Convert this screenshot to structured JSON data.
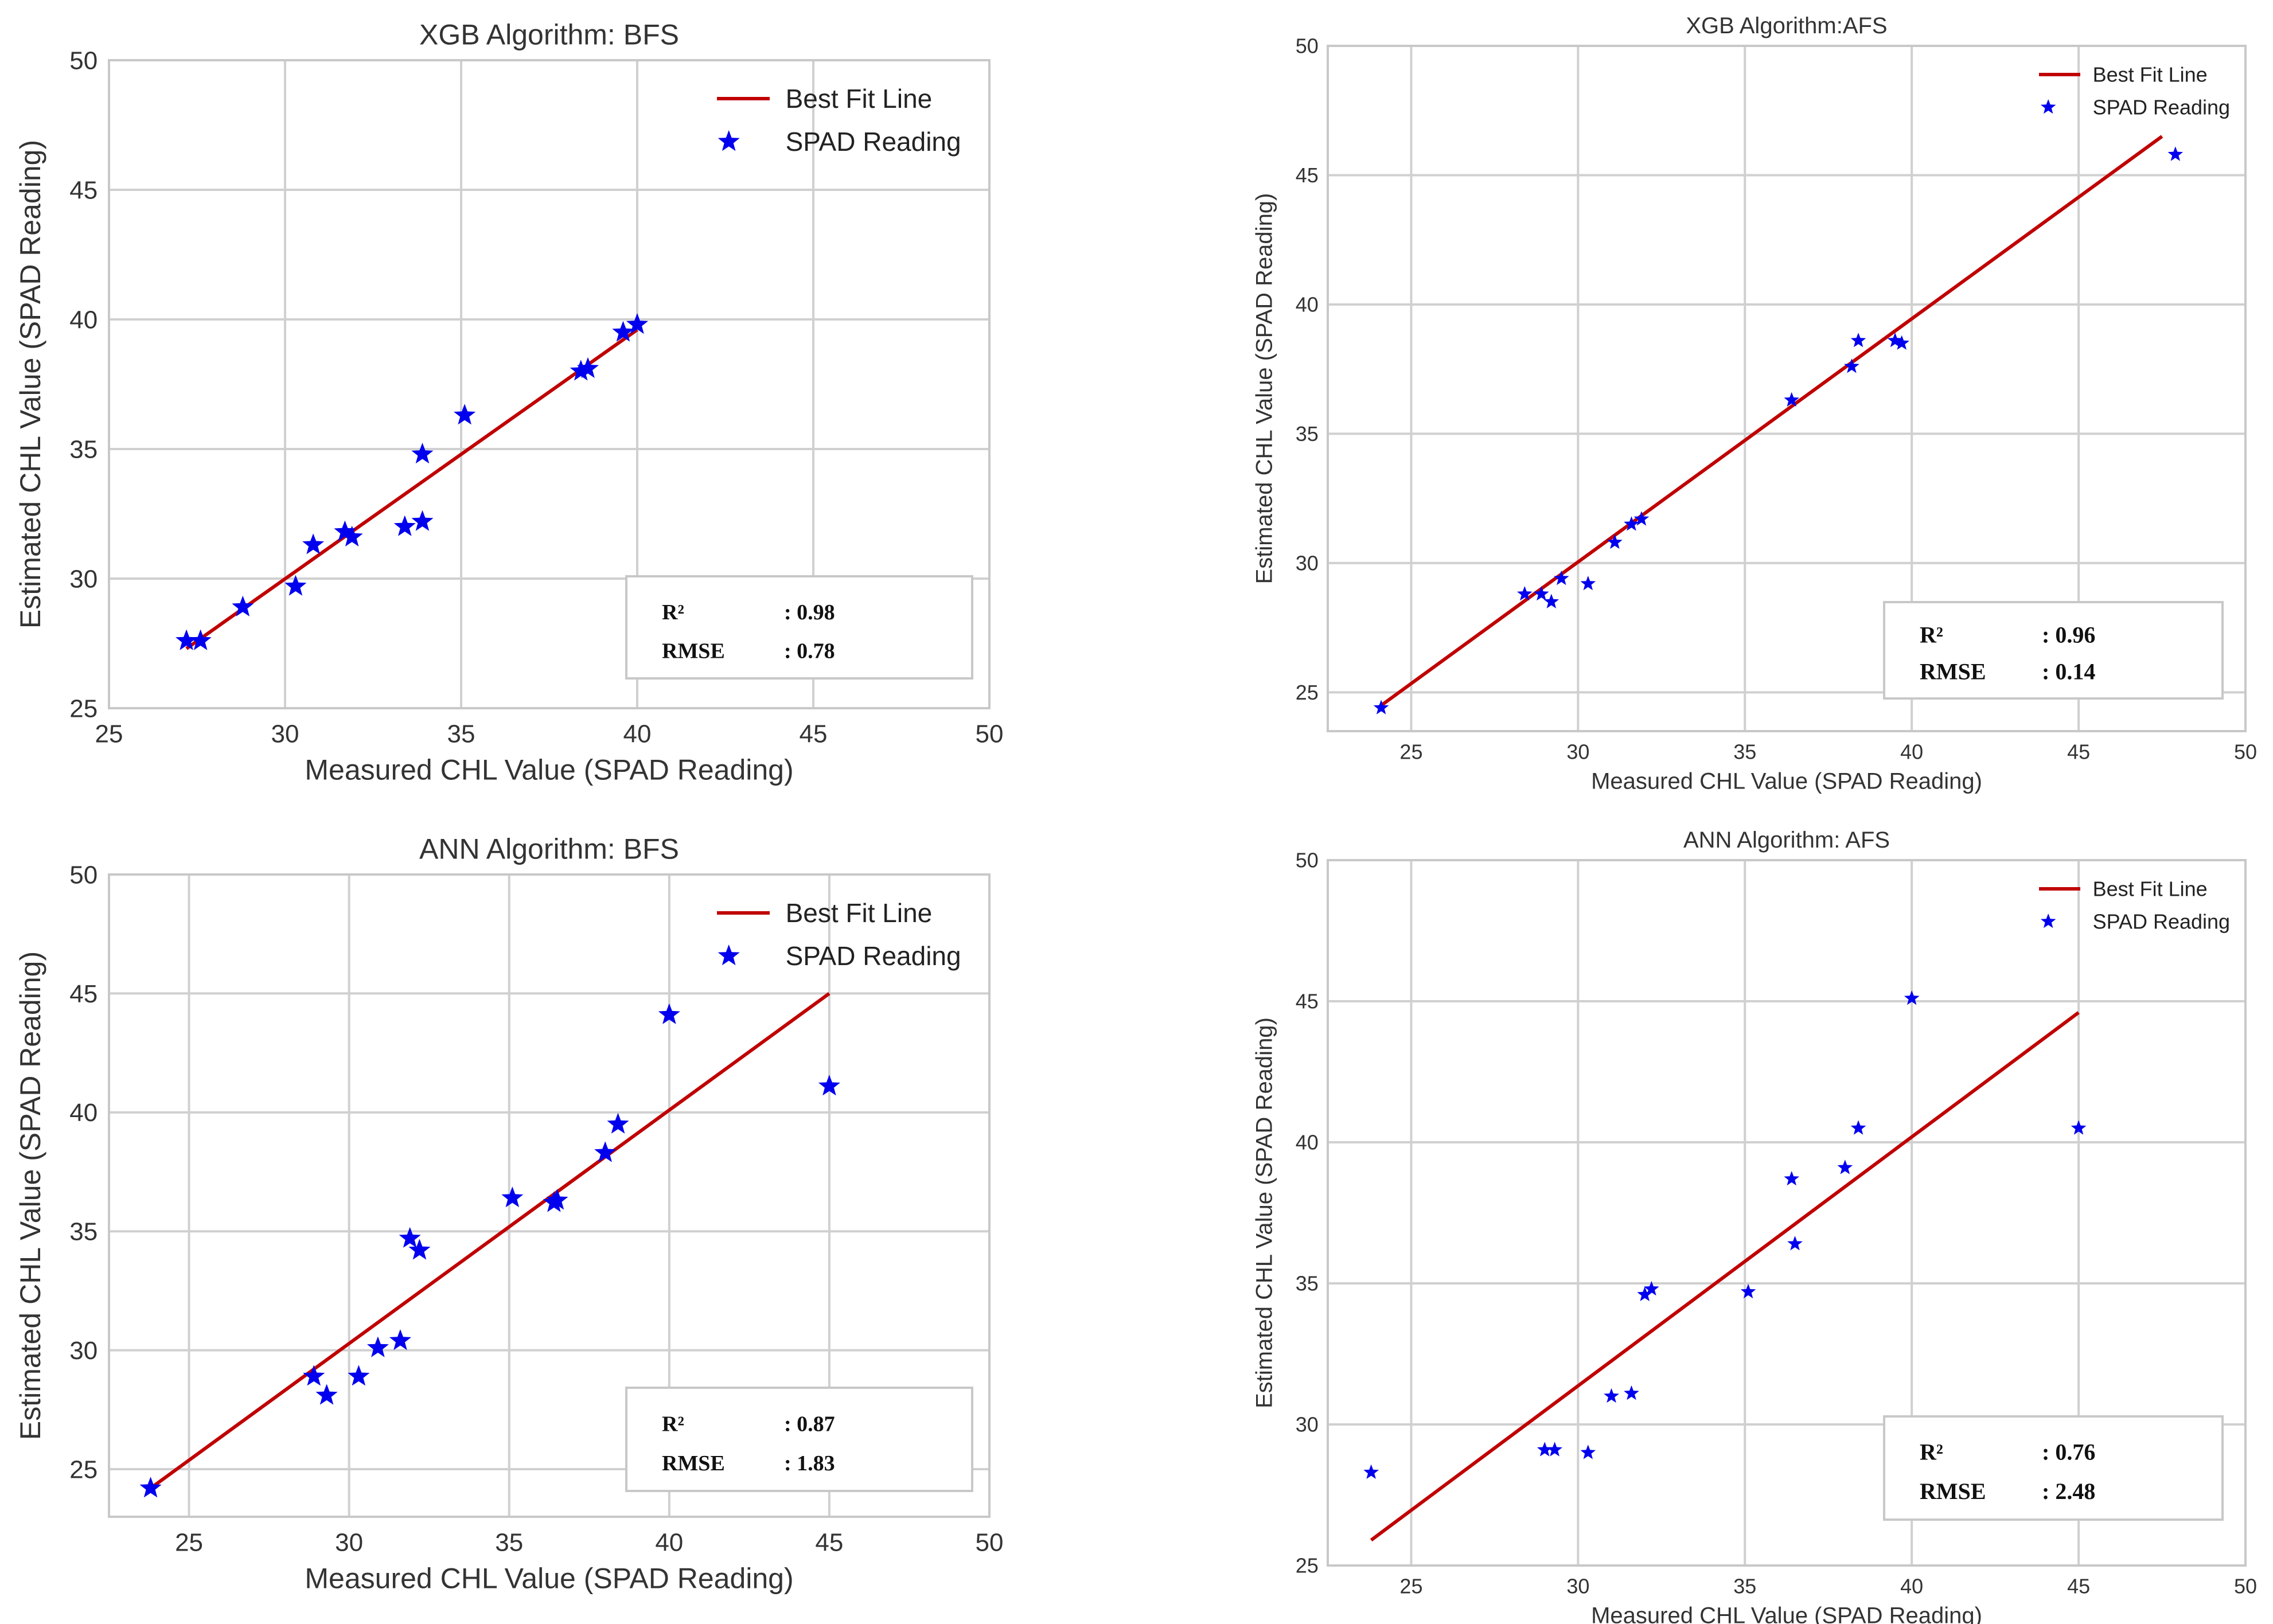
{
  "colors": {
    "line": "#c00000",
    "marker": "#0000ee",
    "grid": "#d0d0d0",
    "frame": "#c8c8c8",
    "text": "#333333"
  },
  "chart_data": [
    {
      "type": "scatter",
      "title": "XGB Algorithm: BFS",
      "xlabel": "Measured CHL Value (SPAD Reading)",
      "ylabel": "Estimated CHL Value (SPAD Reading)",
      "xlim": [
        25,
        50
      ],
      "ylim": [
        25,
        50
      ],
      "xticks": [
        25,
        30,
        35,
        40,
        45,
        50
      ],
      "yticks": [
        25,
        30,
        35,
        40,
        45,
        50
      ],
      "legend": [
        "Best Fit Line",
        "SPAD Reading"
      ],
      "fit_line": {
        "x": [
          27.2,
          40.0
        ],
        "y": [
          27.3,
          39.6
        ]
      },
      "points": {
        "x": [
          27.2,
          27.6,
          28.8,
          30.3,
          30.8,
          31.7,
          31.9,
          33.4,
          33.9,
          33.9,
          35.1,
          38.4,
          38.6,
          39.6,
          40.0
        ],
        "y": [
          27.6,
          27.6,
          28.9,
          29.7,
          31.3,
          31.8,
          31.6,
          32.0,
          32.2,
          34.8,
          36.3,
          38.0,
          38.1,
          39.5,
          39.8
        ]
      },
      "stats": {
        "r2_label": "R²",
        "r2_value": ": 0.98",
        "rmse_label": "RMSE",
        "rmse_value": ": 0.78"
      }
    },
    {
      "type": "scatter",
      "title": "XGB Algorithm:AFS",
      "xlabel": "Measured CHL Value (SPAD Reading)",
      "ylabel": "Estimated CHL Value (SPAD Reading)",
      "xlim": [
        22.5,
        50
      ],
      "ylim": [
        23.5,
        50
      ],
      "xticks": [
        25,
        30,
        35,
        40,
        45,
        50
      ],
      "yticks": [
        25,
        30,
        35,
        40,
        45,
        50
      ],
      "legend": [
        "Best Fit Line",
        "SPAD Reading"
      ],
      "fit_line": {
        "x": [
          24.0,
          47.5
        ],
        "y": [
          24.4,
          46.5
        ]
      },
      "points": {
        "x": [
          24.1,
          28.4,
          28.9,
          29.2,
          29.5,
          30.3,
          31.1,
          31.6,
          31.9,
          36.4,
          38.2,
          38.4,
          39.5,
          39.7,
          47.9
        ],
        "y": [
          24.4,
          28.8,
          28.8,
          28.5,
          29.4,
          29.2,
          30.8,
          31.5,
          31.7,
          36.3,
          37.6,
          38.6,
          38.6,
          38.5,
          45.8
        ]
      },
      "stats": {
        "r2_label": "R²",
        "r2_value": ": 0.96",
        "rmse_label": "RMSE",
        "rmse_value": ": 0.14"
      }
    },
    {
      "type": "scatter",
      "title": "ANN Algorithm: BFS",
      "xlabel": "Measured CHL Value (SPAD Reading)",
      "ylabel": "Estimated CHL Value (SPAD Reading)",
      "xlim": [
        22.5,
        50
      ],
      "ylim": [
        23,
        50
      ],
      "xticks": [
        25,
        30,
        35,
        40,
        45,
        50
      ],
      "yticks": [
        25,
        30,
        35,
        40,
        45,
        50
      ],
      "legend": [
        "Best Fit Line",
        "SPAD Reading"
      ],
      "fit_line": {
        "x": [
          23.8,
          45.0
        ],
        "y": [
          24.2,
          45.0
        ]
      },
      "points": {
        "x": [
          23.8,
          28.9,
          29.3,
          30.3,
          30.9,
          31.6,
          31.9,
          32.2,
          35.1,
          36.4,
          36.5,
          38.0,
          38.4,
          40.0,
          45.0
        ],
        "y": [
          24.2,
          28.9,
          28.1,
          28.9,
          30.1,
          30.4,
          34.7,
          34.2,
          36.4,
          36.2,
          36.3,
          38.3,
          39.5,
          44.1,
          41.1
        ]
      },
      "stats": {
        "r2_label": "R²",
        "r2_value": ": 0.87",
        "rmse_label": "RMSE",
        "rmse_value": ": 1.83"
      }
    },
    {
      "type": "scatter",
      "title": "ANN Algorithm: AFS",
      "xlabel": "Measured CHL Value (SPAD Reading)",
      "ylabel": "Estimated CHL Value (SPAD Reading)",
      "xlim": [
        22.5,
        50
      ],
      "ylim": [
        25,
        50
      ],
      "xticks": [
        25,
        30,
        35,
        40,
        45,
        50
      ],
      "yticks": [
        25,
        30,
        35,
        40,
        45,
        50
      ],
      "legend": [
        "Best Fit Line",
        "SPAD Reading"
      ],
      "fit_line": {
        "x": [
          23.8,
          45.0
        ],
        "y": [
          25.9,
          44.6
        ]
      },
      "points": {
        "x": [
          23.8,
          29.0,
          29.3,
          30.3,
          31.0,
          31.6,
          32.0,
          32.2,
          35.1,
          36.4,
          36.5,
          38.0,
          38.4,
          40.0,
          45.0
        ],
        "y": [
          28.3,
          29.1,
          29.1,
          29.0,
          31.0,
          31.1,
          34.6,
          34.8,
          34.7,
          38.7,
          36.4,
          39.1,
          40.5,
          45.1,
          40.5
        ]
      },
      "stats": {
        "r2_label": "R²",
        "r2_value": ": 0.76",
        "rmse_label": "RMSE",
        "rmse_value": ": 2.48"
      }
    }
  ]
}
